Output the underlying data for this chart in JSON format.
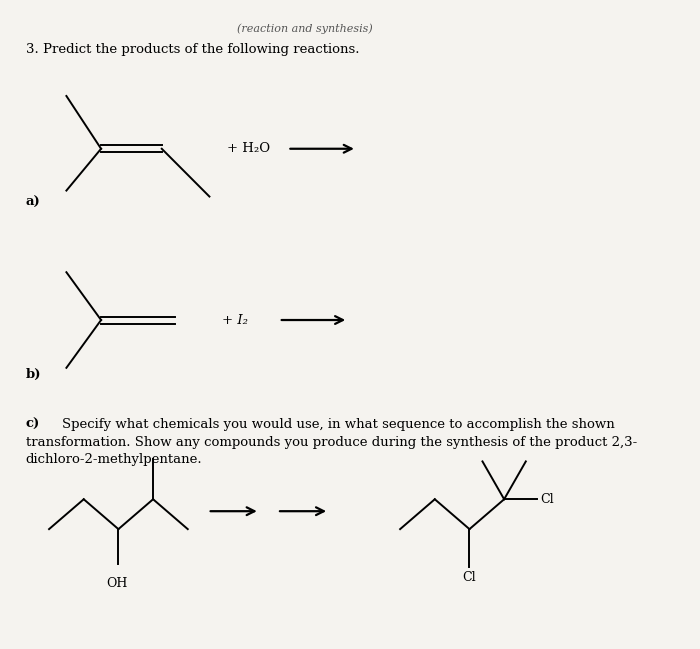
{
  "background_color": "#f5f3ef",
  "title_italic": "(reaction and synthesis)",
  "question": "3. Predict the products of the following reactions.",
  "label_a": "a)",
  "label_b": "b)",
  "text_c_bold": "c)",
  "text_c_rest": " Specify what chemicals you would use, in what sequence to accomplish the shown\ntransformation. Show any compounds you produce during the synthesis of the product 2,3-\ndichloro-2-methylpentane.",
  "reagent_a": "+ H₂O",
  "reagent_b": "+ I₂",
  "oh_label": "OH",
  "cl_down_label": "Cl",
  "cl_right_label": "Cl"
}
